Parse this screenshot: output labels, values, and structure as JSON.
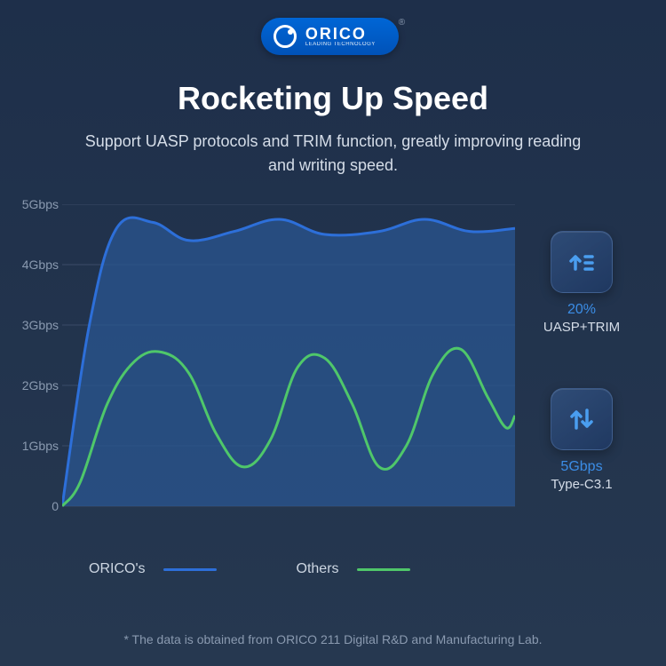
{
  "logo": {
    "brand": "ORICO",
    "tagline": "LEADING TECHNOLOGY",
    "reg": "®"
  },
  "title": "Rocketing Up Speed",
  "subtitle": "Support UASP protocols and TRIM function, greatly improving reading and writing speed.",
  "chart": {
    "type": "area-line",
    "background_color": "#243650",
    "ylim": [
      0,
      5
    ],
    "y_ticks": [
      {
        "v": 5,
        "label": "5Gbps"
      },
      {
        "v": 4,
        "label": "4Gbps"
      },
      {
        "v": 3,
        "label": "3Gbps"
      },
      {
        "v": 2,
        "label": "2Gbps"
      },
      {
        "v": 1,
        "label": "1Gbps"
      },
      {
        "v": 0,
        "label": "0"
      }
    ],
    "grid_color": "#3a4b68",
    "series": {
      "orico": {
        "label": "ORICO's",
        "stroke": "#2d6fd9",
        "fill": "#2a5590",
        "fill_opacity": 0.75,
        "stroke_width": 3,
        "points": [
          {
            "x": 0.0,
            "y": 0.0
          },
          {
            "x": 0.06,
            "y": 3.0
          },
          {
            "x": 0.12,
            "y": 4.6
          },
          {
            "x": 0.2,
            "y": 4.7
          },
          {
            "x": 0.28,
            "y": 4.4
          },
          {
            "x": 0.38,
            "y": 4.55
          },
          {
            "x": 0.48,
            "y": 4.75
          },
          {
            "x": 0.58,
            "y": 4.5
          },
          {
            "x": 0.7,
            "y": 4.55
          },
          {
            "x": 0.8,
            "y": 4.75
          },
          {
            "x": 0.9,
            "y": 4.55
          },
          {
            "x": 1.0,
            "y": 4.6
          }
        ]
      },
      "others": {
        "label": "Others",
        "stroke": "#4fc76a",
        "stroke_width": 3,
        "points": [
          {
            "x": 0.0,
            "y": 0.0
          },
          {
            "x": 0.04,
            "y": 0.4
          },
          {
            "x": 0.1,
            "y": 1.7
          },
          {
            "x": 0.16,
            "y": 2.4
          },
          {
            "x": 0.22,
            "y": 2.55
          },
          {
            "x": 0.28,
            "y": 2.2
          },
          {
            "x": 0.34,
            "y": 1.2
          },
          {
            "x": 0.4,
            "y": 0.65
          },
          {
            "x": 0.46,
            "y": 1.1
          },
          {
            "x": 0.52,
            "y": 2.3
          },
          {
            "x": 0.58,
            "y": 2.45
          },
          {
            "x": 0.64,
            "y": 1.7
          },
          {
            "x": 0.7,
            "y": 0.65
          },
          {
            "x": 0.76,
            "y": 1.0
          },
          {
            "x": 0.82,
            "y": 2.2
          },
          {
            "x": 0.88,
            "y": 2.6
          },
          {
            "x": 0.94,
            "y": 1.8
          },
          {
            "x": 0.98,
            "y": 1.3
          },
          {
            "x": 1.0,
            "y": 1.5
          }
        ]
      }
    }
  },
  "cards": [
    {
      "icon": "upload-bars",
      "value": "20%",
      "label": "UASP+TRIM",
      "icon_color": "#3b8de6"
    },
    {
      "icon": "transfer",
      "value": "5Gbps",
      "label": "Type-C3.1",
      "icon_color": "#3b8de6"
    }
  ],
  "legend": {
    "orico": "ORICO's",
    "others": "Others"
  },
  "footnote": "* The data is obtained from ORICO 211 Digital R&D and Manufacturing Lab."
}
